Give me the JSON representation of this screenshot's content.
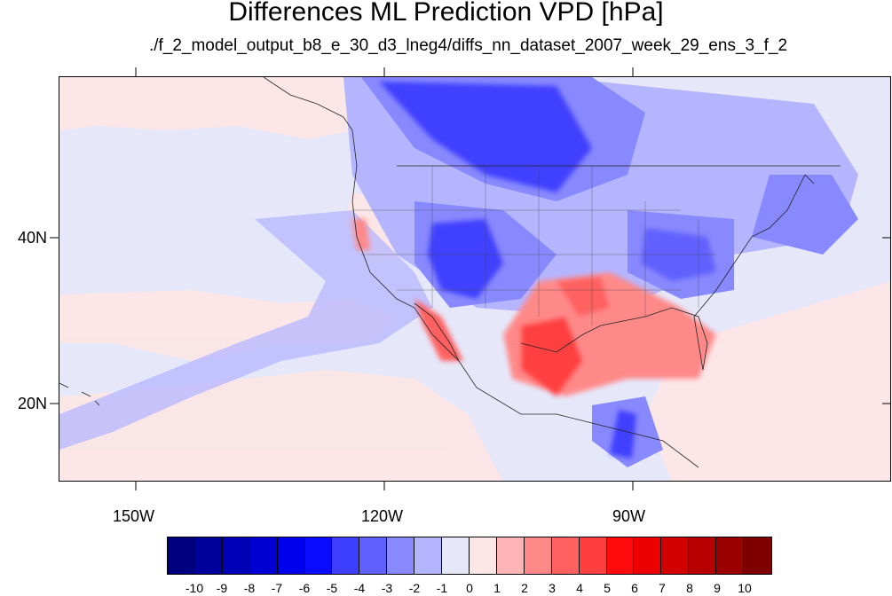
{
  "title": "Differences ML Prediction VPD [hPa]",
  "subtitle": "./f_2_model_output_b8_e_30_d3_lneg4/diffs_nn_dataset_2007_week_29_ens_3_f_2",
  "map": {
    "lat_labels": [
      "40N",
      "20N"
    ],
    "lon_labels": [
      "150W",
      "120W",
      "90W"
    ],
    "background_color": "#e6e8fa"
  },
  "colorbar": {
    "labels": [
      "-10",
      "-9",
      "-8",
      "-7",
      "-6",
      "-5",
      "-4",
      "-3",
      "-2",
      "-1",
      "0",
      "1",
      "2",
      "3",
      "4",
      "5",
      "6",
      "7",
      "8",
      "9",
      "10"
    ],
    "colors": [
      "#00007f",
      "#00009b",
      "#0000b7",
      "#0000d3",
      "#0000ef",
      "#0b0bff",
      "#3f3fff",
      "#6060ff",
      "#8989ff",
      "#b5b5ff",
      "#e6e8fa",
      "#fde6e6",
      "#ffb5b5",
      "#ff8989",
      "#ff6060",
      "#ff3f3f",
      "#ff0b0b",
      "#ef0000",
      "#d30000",
      "#b70000",
      "#9b0000",
      "#7f0000"
    ]
  }
}
